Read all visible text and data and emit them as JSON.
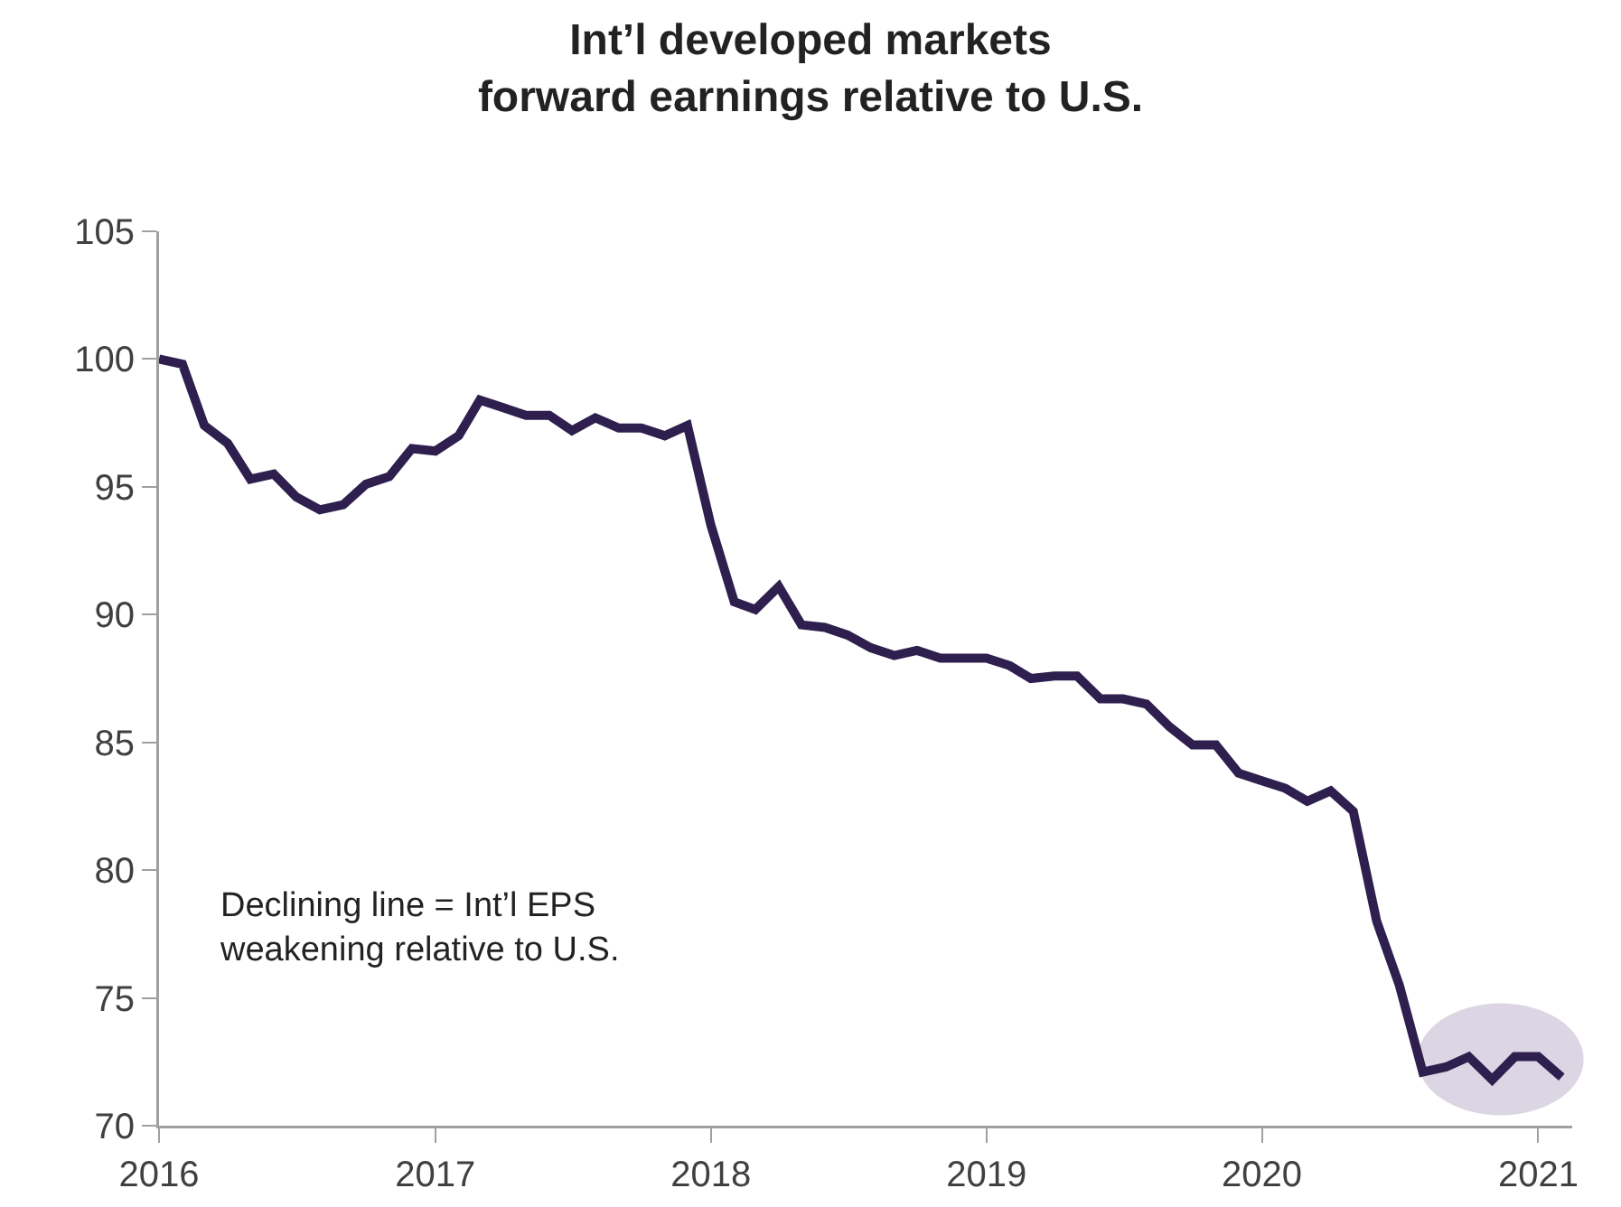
{
  "chart_data": {
    "type": "line",
    "title": "Int’l developed markets\nforward earnings relative to U.S.",
    "x": [
      "2016-01",
      "2016-02",
      "2016-03",
      "2016-04",
      "2016-05",
      "2016-06",
      "2016-07",
      "2016-08",
      "2016-09",
      "2016-10",
      "2016-11",
      "2016-12",
      "2017-01",
      "2017-02",
      "2017-03",
      "2017-04",
      "2017-05",
      "2017-06",
      "2017-07",
      "2017-08",
      "2017-09",
      "2017-10",
      "2017-11",
      "2017-12",
      "2018-01",
      "2018-02",
      "2018-03",
      "2018-04",
      "2018-05",
      "2018-06",
      "2018-07",
      "2018-08",
      "2018-09",
      "2018-10",
      "2018-11",
      "2018-12",
      "2019-01",
      "2019-02",
      "2019-03",
      "2019-04",
      "2019-05",
      "2019-06",
      "2019-07",
      "2019-08",
      "2019-09",
      "2019-10",
      "2019-11",
      "2019-12",
      "2020-01",
      "2020-02",
      "2020-03",
      "2020-04",
      "2020-05",
      "2020-06",
      "2020-07",
      "2020-08",
      "2020-09",
      "2020-10",
      "2020-11",
      "2020-12",
      "2021-01",
      "2021-02"
    ],
    "series": [
      {
        "color": "#2e1f4f",
        "values": [
          100.0,
          99.8,
          97.4,
          96.7,
          95.3,
          95.5,
          94.6,
          94.1,
          94.3,
          95.1,
          95.4,
          96.5,
          96.4,
          97.0,
          98.4,
          98.1,
          97.8,
          97.8,
          97.2,
          97.7,
          97.3,
          97.3,
          97.0,
          97.4,
          93.5,
          90.5,
          90.2,
          91.1,
          89.6,
          89.5,
          89.2,
          88.7,
          88.4,
          88.6,
          88.3,
          88.3,
          88.3,
          88.0,
          87.5,
          87.6,
          87.6,
          86.7,
          86.7,
          86.5,
          85.6,
          84.9,
          84.9,
          83.8,
          83.5,
          83.2,
          82.7,
          83.1,
          82.3,
          78.0,
          75.5,
          72.1,
          72.3,
          72.7,
          71.8,
          72.7,
          72.7,
          71.9
        ]
      }
    ],
    "xlim": [
      "2016-01-01",
      "2021-02-15"
    ],
    "xticks": [
      {
        "value": "2016-01-01",
        "label": "2016"
      },
      {
        "value": "2017-01-01",
        "label": "2017"
      },
      {
        "value": "2018-01-01",
        "label": "2018"
      },
      {
        "value": "2019-01-01",
        "label": "2019"
      },
      {
        "value": "2020-01-01",
        "label": "2020"
      },
      {
        "value": "2021-01-01",
        "label": "2021"
      }
    ],
    "ylim": [
      70,
      105
    ],
    "yticks": [
      70,
      75,
      80,
      85,
      90,
      95,
      100,
      105
    ],
    "grid": false,
    "marker": "none",
    "line_style": "solid",
    "annotations": [
      "Declining line = Int’l EPS\nweakening relative to U.S."
    ]
  }
}
